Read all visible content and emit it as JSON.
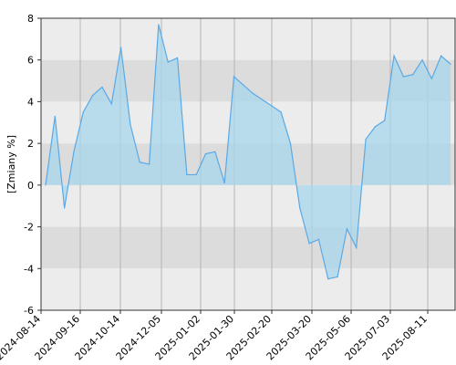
{
  "chart_data": {
    "type": "area",
    "title": "",
    "xlabel": "",
    "ylabel": "[Zmiany %]",
    "ylim": [
      -6,
      8
    ],
    "y_ticks": [
      8,
      6,
      4,
      2,
      0,
      -2,
      -4,
      -6
    ],
    "x_tick_labels": [
      "2024-08-14",
      "2024-09-16",
      "2024-10-14",
      "2024-12-05",
      "2025-01-02",
      "2025-01-30",
      "2025-02-20",
      "2025-03-20",
      "2025-05-06",
      "2025-07-03",
      "2025-08-11"
    ],
    "grid": true,
    "series": [
      {
        "values": [
          0.0,
          3.3,
          -1.1,
          1.6,
          3.5,
          4.3,
          4.7,
          3.9,
          6.6,
          2.9,
          1.1,
          1.0,
          7.7,
          5.9,
          6.1,
          0.5,
          0.5,
          1.5,
          1.6,
          0.1,
          5.2,
          4.8,
          4.4,
          4.1,
          3.8,
          3.5,
          2.0,
          -1.1,
          -2.8,
          -2.6,
          -4.5,
          -4.4,
          -2.1,
          -3.0,
          2.2,
          2.8,
          3.1,
          6.2,
          5.2,
          5.3,
          6.0,
          5.1,
          6.2,
          5.8
        ]
      }
    ],
    "colors": {
      "line": "#5aa9e6",
      "fill": "#a7d7ec",
      "band_light": "#ececec",
      "band_dark": "#dcdcdc",
      "vgrid": "#b3b3b3",
      "frame": "#333333"
    }
  }
}
